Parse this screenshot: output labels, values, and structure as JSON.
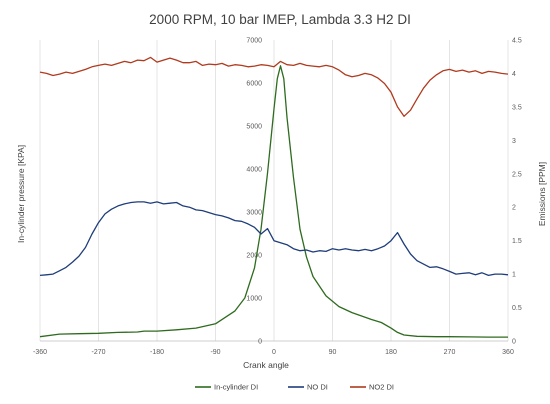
{
  "chart_data": {
    "type": "line",
    "title": "2000 RPM, 10 bar IMEP, Lambda 3.3 H2 DI",
    "xlabel": "Crank angle",
    "ylabel": "In-cylinder pressure [KPA]",
    "y2label": "Emissions [PPM]",
    "xlim": [
      -360,
      360
    ],
    "xticks": [
      "-360",
      "-270",
      "-180",
      "-90",
      "0",
      "90",
      "180",
      "270",
      "360"
    ],
    "ylim": [
      0,
      7000
    ],
    "yticks": [
      "0",
      "1000",
      "2000",
      "3000",
      "4000",
      "5000",
      "6000",
      "7000"
    ],
    "y2lim": [
      0,
      4.5
    ],
    "y2ticks": [
      "0",
      "0.5",
      "1",
      "1.5",
      "2",
      "2.5",
      "3",
      "3.5",
      "4",
      "4.5"
    ],
    "grid": "vertical",
    "legend": "bottom",
    "series": [
      {
        "name": "In-cylinder DI",
        "axis": "left",
        "color": "#2e6b1f",
        "x": [
          -360,
          -330,
          -300,
          -270,
          -240,
          -210,
          -200,
          -180,
          -150,
          -120,
          -90,
          -60,
          -45,
          -30,
          -20,
          -10,
          0,
          5,
          10,
          15,
          20,
          30,
          40,
          50,
          60,
          80,
          100,
          120,
          150,
          165,
          180,
          190,
          200,
          220,
          250,
          270,
          300,
          330,
          360
        ],
        "y": [
          100,
          160,
          170,
          180,
          200,
          210,
          230,
          230,
          260,
          300,
          400,
          700,
          1000,
          1700,
          2600,
          3900,
          5400,
          6100,
          6400,
          6100,
          5200,
          3800,
          2600,
          1950,
          1500,
          1050,
          800,
          660,
          500,
          430,
          300,
          200,
          140,
          110,
          100,
          100,
          95,
          90,
          90
        ]
      },
      {
        "name": "NO DI",
        "axis": "right",
        "color": "#1f3d7a",
        "x": [
          -360,
          -350,
          -340,
          -330,
          -320,
          -310,
          -300,
          -290,
          -280,
          -270,
          -260,
          -250,
          -240,
          -230,
          -220,
          -210,
          -200,
          -190,
          -180,
          -170,
          -160,
          -150,
          -140,
          -130,
          -120,
          -110,
          -100,
          -90,
          -80,
          -70,
          -60,
          -50,
          -40,
          -30,
          -20,
          -10,
          0,
          10,
          20,
          30,
          40,
          50,
          60,
          70,
          80,
          90,
          100,
          110,
          120,
          130,
          140,
          150,
          160,
          170,
          180,
          190,
          200,
          210,
          220,
          230,
          240,
          250,
          260,
          270,
          280,
          290,
          300,
          310,
          320,
          330,
          340,
          350,
          360
        ],
        "y": [
          0.98,
          0.99,
          1.0,
          1.05,
          1.1,
          1.18,
          1.27,
          1.4,
          1.6,
          1.77,
          1.9,
          1.97,
          2.02,
          2.05,
          2.07,
          2.08,
          2.08,
          2.06,
          2.08,
          2.05,
          2.06,
          2.07,
          2.02,
          2.0,
          1.96,
          1.95,
          1.92,
          1.89,
          1.87,
          1.84,
          1.8,
          1.79,
          1.75,
          1.7,
          1.6,
          1.68,
          1.5,
          1.47,
          1.44,
          1.38,
          1.35,
          1.36,
          1.33,
          1.35,
          1.34,
          1.38,
          1.36,
          1.38,
          1.36,
          1.35,
          1.37,
          1.35,
          1.38,
          1.42,
          1.5,
          1.62,
          1.45,
          1.3,
          1.2,
          1.15,
          1.1,
          1.11,
          1.08,
          1.04,
          1.0,
          1.01,
          1.02,
          0.99,
          1.02,
          0.98,
          1.0,
          1.0,
          0.99
        ]
      },
      {
        "name": "NO2 DI",
        "axis": "right",
        "color": "#b03a1e",
        "x": [
          -360,
          -350,
          -340,
          -330,
          -320,
          -310,
          -300,
          -290,
          -280,
          -270,
          -260,
          -250,
          -240,
          -230,
          -220,
          -210,
          -200,
          -190,
          -180,
          -170,
          -160,
          -150,
          -140,
          -130,
          -120,
          -110,
          -100,
          -90,
          -80,
          -70,
          -60,
          -50,
          -40,
          -30,
          -20,
          -10,
          0,
          10,
          20,
          30,
          40,
          50,
          60,
          70,
          80,
          90,
          100,
          110,
          120,
          130,
          140,
          150,
          160,
          170,
          180,
          190,
          200,
          210,
          220,
          230,
          240,
          250,
          260,
          270,
          280,
          290,
          300,
          310,
          320,
          330,
          340,
          350,
          360
        ],
        "y": [
          4.02,
          4.0,
          3.97,
          3.99,
          4.02,
          4.0,
          4.03,
          4.06,
          4.1,
          4.12,
          4.14,
          4.12,
          4.15,
          4.18,
          4.16,
          4.2,
          4.19,
          4.24,
          4.17,
          4.2,
          4.23,
          4.2,
          4.16,
          4.16,
          4.18,
          4.12,
          4.14,
          4.13,
          4.15,
          4.11,
          4.13,
          4.12,
          4.1,
          4.11,
          4.13,
          4.12,
          4.1,
          4.18,
          4.13,
          4.12,
          4.15,
          4.12,
          4.11,
          4.1,
          4.12,
          4.1,
          4.05,
          3.98,
          3.95,
          3.97,
          4.0,
          3.98,
          3.93,
          3.85,
          3.72,
          3.5,
          3.36,
          3.45,
          3.62,
          3.78,
          3.9,
          3.98,
          4.04,
          4.06,
          4.03,
          4.05,
          4.02,
          4.04,
          4.0,
          4.03,
          4.02,
          4.0,
          3.99
        ]
      }
    ]
  }
}
